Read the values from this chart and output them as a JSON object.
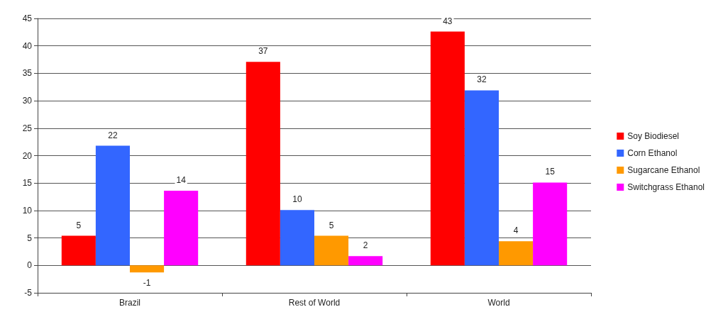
{
  "chart_data": {
    "type": "bar",
    "categories": [
      "Brazil",
      "Rest of World",
      "World"
    ],
    "series": [
      {
        "name": "Soy Biodiesel",
        "color": "#ff0000",
        "values": [
          5.4,
          37.1,
          42.6
        ],
        "value_labels": [
          "5",
          "37",
          "43"
        ]
      },
      {
        "name": "Corn Ethanol",
        "color": "#3366ff",
        "values": [
          21.8,
          10.1,
          31.9
        ],
        "value_labels": [
          "22",
          "10",
          "32"
        ]
      },
      {
        "name": "Sugarcane Ethanol",
        "color": "#ff9900",
        "values": [
          -1.3,
          5.4,
          4.4
        ],
        "value_labels": [
          "-1",
          "5",
          "4"
        ]
      },
      {
        "name": "Switchgrass Ethanol",
        "color": "#ff00ff",
        "values": [
          13.6,
          1.7,
          15.1
        ],
        "value_labels": [
          "14",
          "2",
          "15"
        ]
      }
    ],
    "ylim": [
      -5,
      45
    ],
    "yticks": [
      -5,
      0,
      5,
      10,
      15,
      20,
      25,
      30,
      35,
      40,
      45
    ],
    "grid": "y",
    "legend": "right"
  }
}
